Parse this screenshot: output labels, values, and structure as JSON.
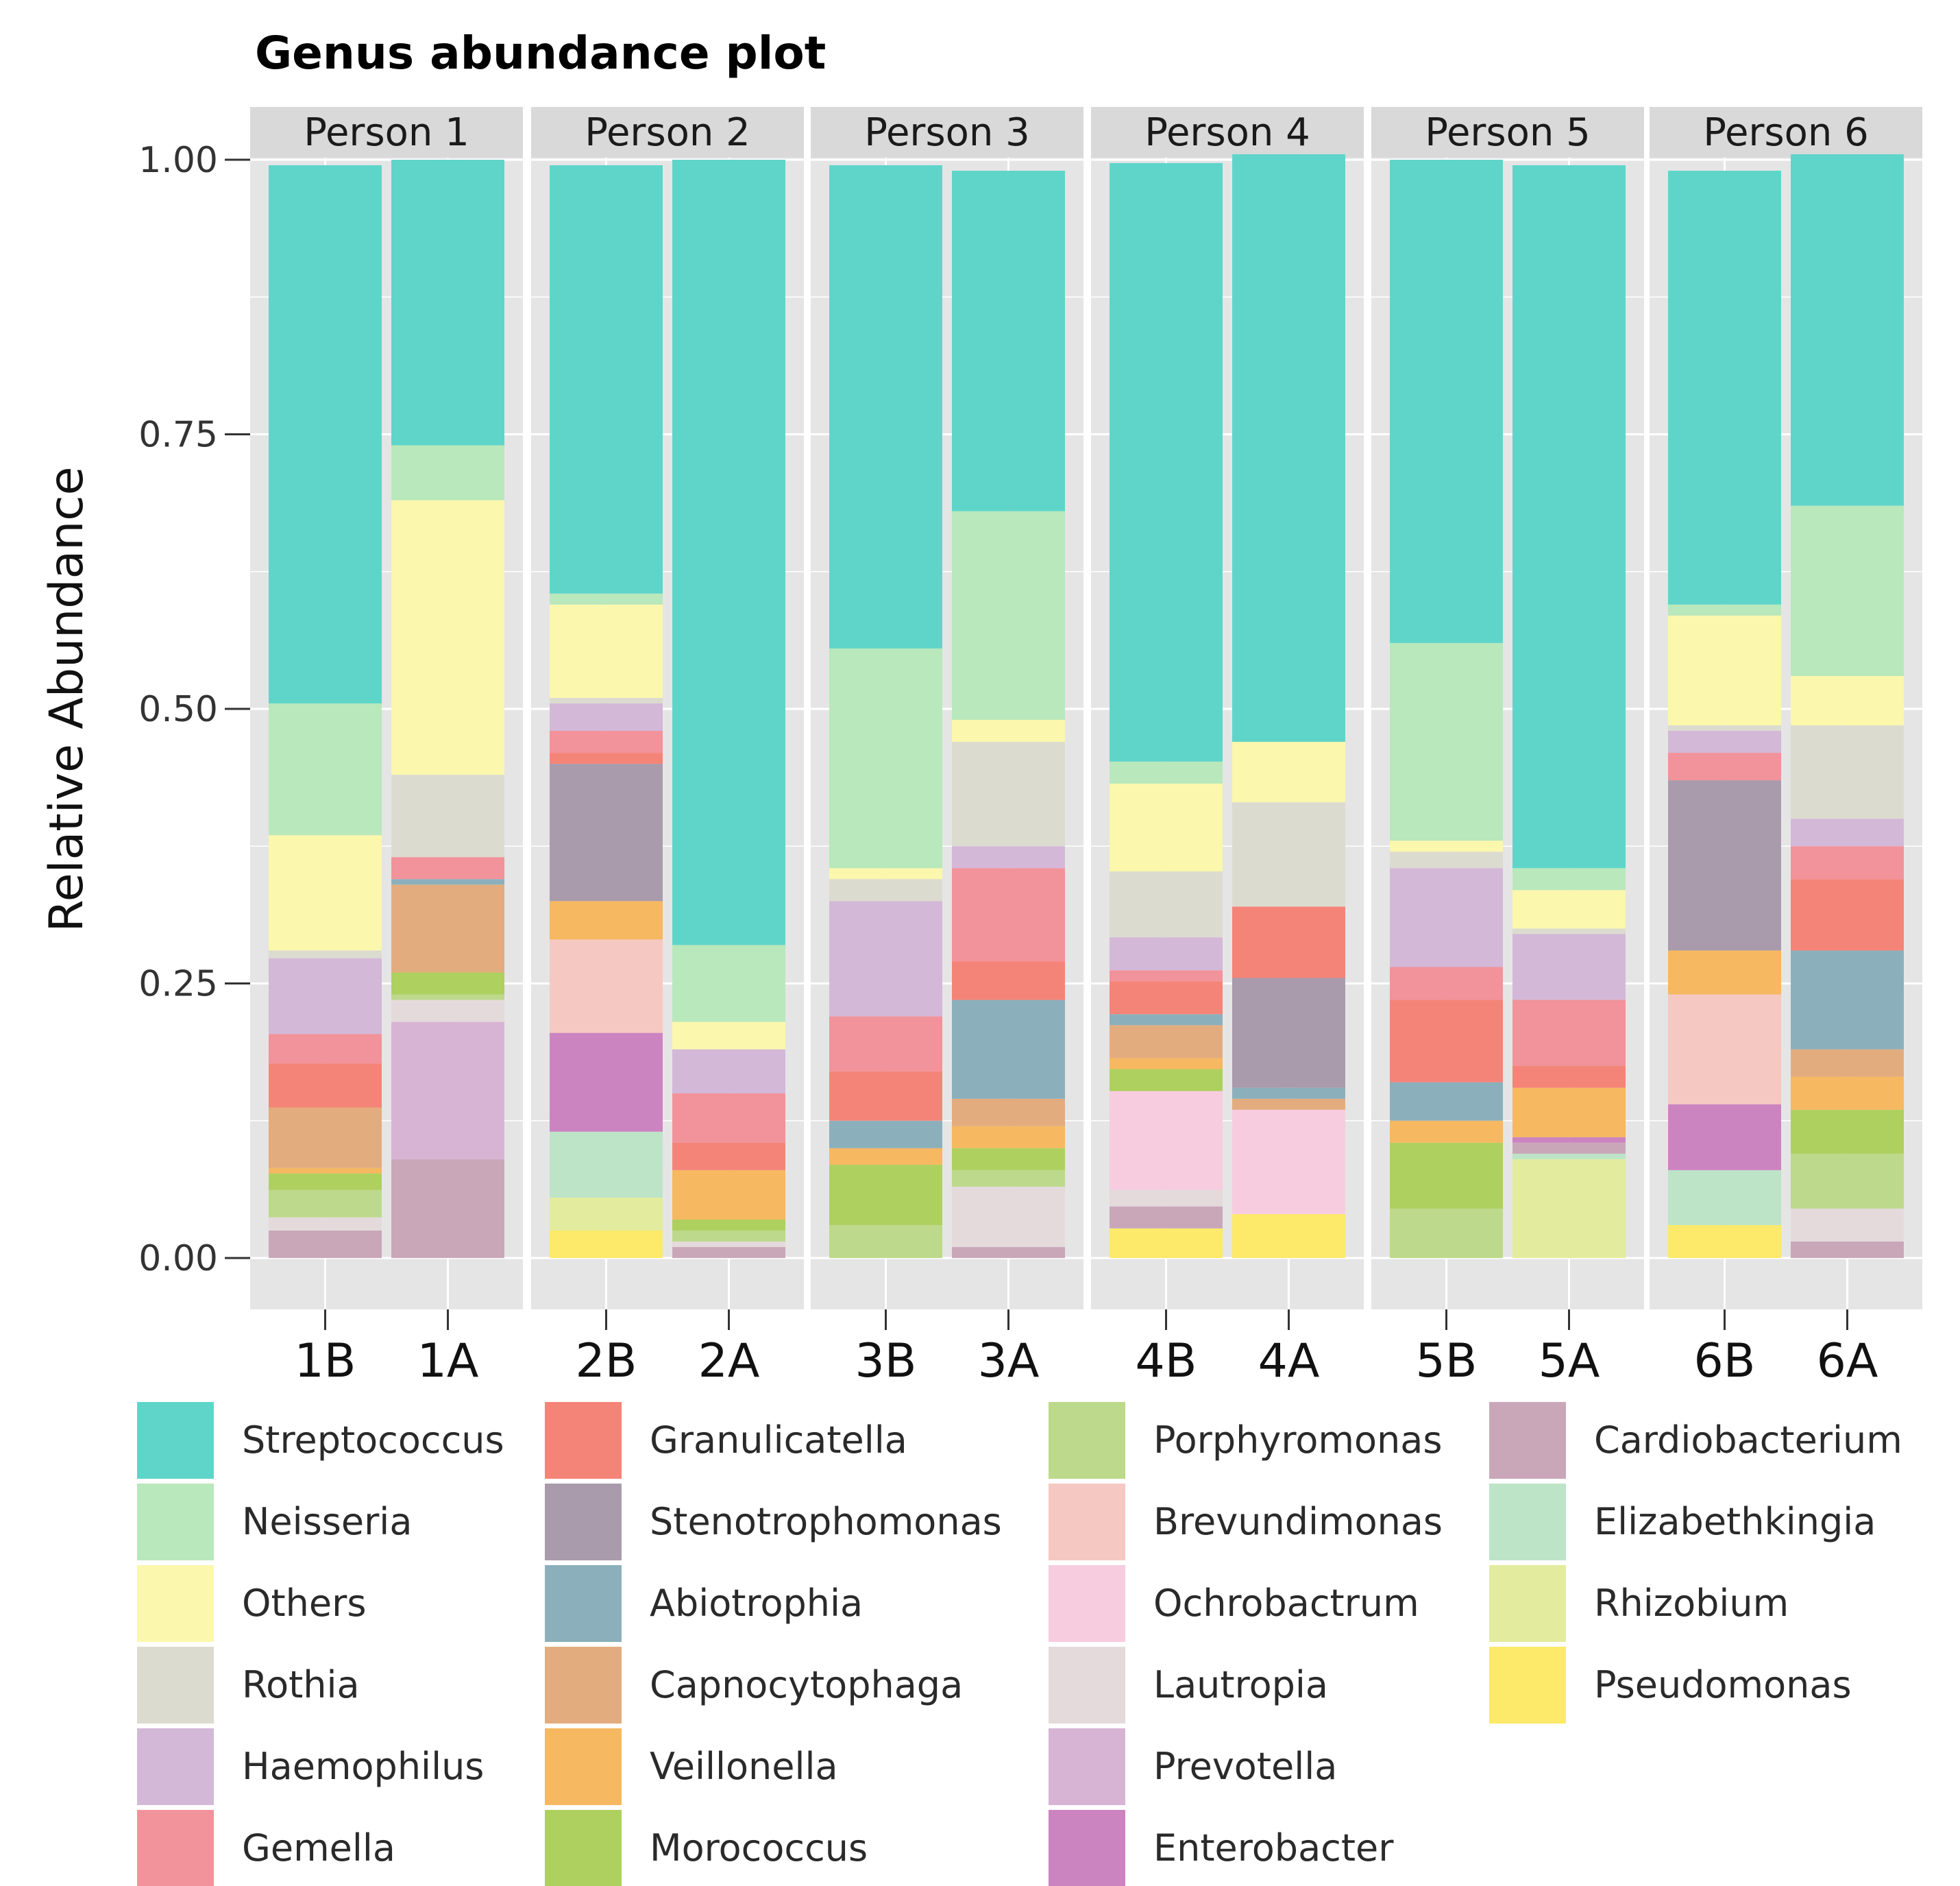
{
  "chart_data": {
    "type": "bar",
    "stacked": true,
    "title": "Genus abundance plot",
    "xlabel": "",
    "ylabel": "Relative Abundance",
    "ylim": [
      0,
      1
    ],
    "yticks": [
      0,
      0.25,
      0.5,
      0.75,
      1
    ],
    "ytick_labels": [
      "0.00",
      "0.25",
      "0.50",
      "0.75",
      "1.00"
    ],
    "legend_position": "bottom",
    "panels": [
      {
        "name": "Person 1",
        "categories": [
          "1B",
          "1A"
        ]
      },
      {
        "name": "Person 2",
        "categories": [
          "2B",
          "2A"
        ]
      },
      {
        "name": "Person 3",
        "categories": [
          "3B",
          "3A"
        ]
      },
      {
        "name": "Person 4",
        "categories": [
          "4B",
          "4A"
        ]
      },
      {
        "name": "Person 5",
        "categories": [
          "5B",
          "5A"
        ]
      },
      {
        "name": "Person 6",
        "categories": [
          "6B",
          "6A"
        ]
      }
    ],
    "categories": [
      "1B",
      "1A",
      "2B",
      "2A",
      "3B",
      "3A",
      "4B",
      "4A",
      "5B",
      "5A",
      "6B",
      "6A"
    ],
    "series": [
      {
        "name": "Pseudomonas",
        "color": "#FDE96A",
        "values": [
          0,
          0,
          0.025,
          0,
          0,
          0,
          0.027,
          0.04,
          0,
          0,
          0.03,
          0
        ]
      },
      {
        "name": "Rhizobium",
        "color": "#E3EC9E",
        "values": [
          0,
          0,
          0.03,
          0,
          0,
          0,
          0,
          0,
          0,
          0.09,
          0,
          0
        ]
      },
      {
        "name": "Elizabethkingia",
        "color": "#BDE4C7",
        "values": [
          0,
          0,
          0.06,
          0,
          0,
          0,
          0,
          0,
          0,
          0.005,
          0.05,
          0
        ]
      },
      {
        "name": "Cardiobacterium",
        "color": "#C9A7B9",
        "values": [
          0.025,
          0.09,
          0,
          0.01,
          0,
          0.01,
          0.02,
          0,
          0,
          0.01,
          0,
          0.015
        ]
      },
      {
        "name": "Enterobacter",
        "color": "#CC84C0",
        "values": [
          0,
          0,
          0.09,
          0,
          0,
          0,
          0,
          0,
          0,
          0.005,
          0.06,
          0
        ]
      },
      {
        "name": "Prevotella",
        "color": "#D8B4D4",
        "values": [
          0,
          0.125,
          0,
          0,
          0,
          0,
          0,
          0,
          0,
          0,
          0,
          0
        ]
      },
      {
        "name": "Lautropia",
        "color": "#E4DADB",
        "values": [
          0.012,
          0.02,
          0,
          0.005,
          0,
          0.055,
          0.015,
          0,
          0,
          0,
          0,
          0.03
        ]
      },
      {
        "name": "Ochrobactrum",
        "color": "#F7CCDF",
        "values": [
          0,
          0,
          0,
          0,
          0,
          0,
          0.09,
          0.095,
          0,
          0,
          0,
          0
        ]
      },
      {
        "name": "Brevundimonas",
        "color": "#F6C8C2",
        "values": [
          0,
          0,
          0.085,
          0,
          0,
          0,
          0,
          0,
          0,
          0,
          0.1,
          0
        ]
      },
      {
        "name": "Porphyromonas",
        "color": "#BDD98C",
        "values": [
          0.025,
          0.005,
          0,
          0.01,
          0.03,
          0.015,
          0,
          0,
          0.045,
          0,
          0,
          0.05
        ]
      },
      {
        "name": "Morococcus",
        "color": "#AED05E",
        "values": [
          0.015,
          0.02,
          0,
          0.01,
          0.055,
          0.02,
          0.02,
          0,
          0.06,
          0,
          0,
          0.04
        ]
      },
      {
        "name": "Veillonella",
        "color": "#F6B860",
        "values": [
          0.005,
          0,
          0.035,
          0.045,
          0.015,
          0.02,
          0.01,
          0,
          0.02,
          0.045,
          0.04,
          0.03
        ]
      },
      {
        "name": "Capnocytophaga",
        "color": "#E3AC7E",
        "values": [
          0.055,
          0.08,
          0,
          0,
          0,
          0.025,
          0.03,
          0.01,
          0,
          0,
          0,
          0.025
        ]
      },
      {
        "name": "Abiotrophia",
        "color": "#8BB0BC",
        "values": [
          0,
          0.005,
          0,
          0,
          0.025,
          0.09,
          0.01,
          0.01,
          0.035,
          0,
          0,
          0.09
        ]
      },
      {
        "name": "Stenotrophomonas",
        "color": "#A99BAC",
        "values": [
          0,
          0,
          0.125,
          0,
          0,
          0,
          0,
          0.1,
          0,
          0,
          0.155,
          0
        ]
      },
      {
        "name": "Granulicatella",
        "color": "#F58478",
        "values": [
          0.04,
          0,
          0.01,
          0.025,
          0.045,
          0.035,
          0.03,
          0.065,
          0.075,
          0.02,
          0,
          0.065
        ]
      },
      {
        "name": "Gemella",
        "color": "#F2929A",
        "values": [
          0.027,
          0.02,
          0.02,
          0.045,
          0.05,
          0.085,
          0.01,
          0,
          0.03,
          0.06,
          0.025,
          0.03
        ]
      },
      {
        "name": "Haemophilus",
        "color": "#D3B8D8",
        "values": [
          0.069,
          0,
          0.025,
          0.04,
          0.105,
          0.02,
          0.03,
          0,
          0.09,
          0.06,
          0.02,
          0.025
        ]
      },
      {
        "name": "Rothia",
        "color": "#DCDBD0",
        "values": [
          0.007,
          0.075,
          0.005,
          0,
          0.02,
          0.095,
          0.06,
          0.095,
          0.015,
          0.005,
          0.005,
          0.085
        ]
      },
      {
        "name": "Others",
        "color": "#FBF7AD",
        "values": [
          0.105,
          0.25,
          0.085,
          0.025,
          0.01,
          0.02,
          0.08,
          0.055,
          0.01,
          0.035,
          0.1,
          0.045
        ]
      },
      {
        "name": "Neisseria",
        "color": "#B8E8BB",
        "values": [
          0.12,
          0.05,
          0.01,
          0.07,
          0.2,
          0.19,
          0.02,
          0,
          0.18,
          0.02,
          0.01,
          0.155
        ]
      },
      {
        "name": "Streptococcus",
        "color": "#5FD5CA",
        "values": [
          0.49,
          0.26,
          0.39,
          0.715,
          0.44,
          0.31,
          0.545,
          0.535,
          0.44,
          0.64,
          0.395,
          0.32
        ]
      }
    ],
    "legend": [
      {
        "label": "Streptococcus",
        "color": "#5FD5CA"
      },
      {
        "label": "Neisseria",
        "color": "#B8E8BB"
      },
      {
        "label": "Others",
        "color": "#FBF7AD"
      },
      {
        "label": "Rothia",
        "color": "#DCDBD0"
      },
      {
        "label": "Haemophilus",
        "color": "#D3B8D8"
      },
      {
        "label": "Gemella",
        "color": "#F2929A"
      },
      {
        "label": "Granulicatella",
        "color": "#F58478"
      },
      {
        "label": "Stenotrophomonas",
        "color": "#A99BAC"
      },
      {
        "label": "Abiotrophia",
        "color": "#8BB0BC"
      },
      {
        "label": "Capnocytophaga",
        "color": "#E3AC7E"
      },
      {
        "label": "Veillonella",
        "color": "#F6B860"
      },
      {
        "label": "Morococcus",
        "color": "#AED05E"
      },
      {
        "label": "Porphyromonas",
        "color": "#BDD98C"
      },
      {
        "label": "Brevundimonas",
        "color": "#F6C8C2"
      },
      {
        "label": "Ochrobactrum",
        "color": "#F7CCDF"
      },
      {
        "label": "Lautropia",
        "color": "#E4DADB"
      },
      {
        "label": "Prevotella",
        "color": "#D8B4D4"
      },
      {
        "label": "Enterobacter",
        "color": "#CC84C0"
      },
      {
        "label": "Cardiobacterium",
        "color": "#C9A7B9"
      },
      {
        "label": "Elizabethkingia",
        "color": "#BDE4C7"
      },
      {
        "label": "Rhizobium",
        "color": "#E3EC9E"
      },
      {
        "label": "Pseudomonas",
        "color": "#FDE96A"
      }
    ],
    "panel_background": "#E5E5E5",
    "grid_color": "#FFFFFF"
  }
}
